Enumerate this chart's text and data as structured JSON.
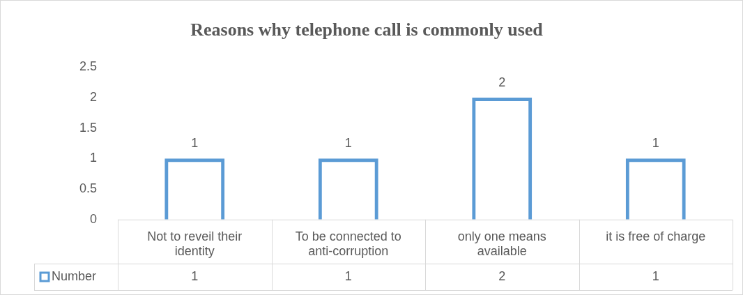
{
  "chart_data": {
    "type": "bar",
    "title": "Reasons why telephone call is commonly used",
    "categories": [
      "Not to reveil their identity",
      "To be connected to anti-corruption",
      "only one means available",
      "it is free of charge"
    ],
    "series": [
      {
        "name": "Number",
        "color": "#5b9bd5",
        "values": [
          1,
          1,
          2,
          1
        ]
      }
    ],
    "ylim": [
      0,
      2.5
    ],
    "yticks": [
      0,
      0.5,
      1,
      1.5,
      2,
      2.5
    ],
    "grid": false,
    "legend": "bottom",
    "data_labels": true,
    "annotations": [
      "1",
      "1",
      "2",
      "1"
    ]
  }
}
